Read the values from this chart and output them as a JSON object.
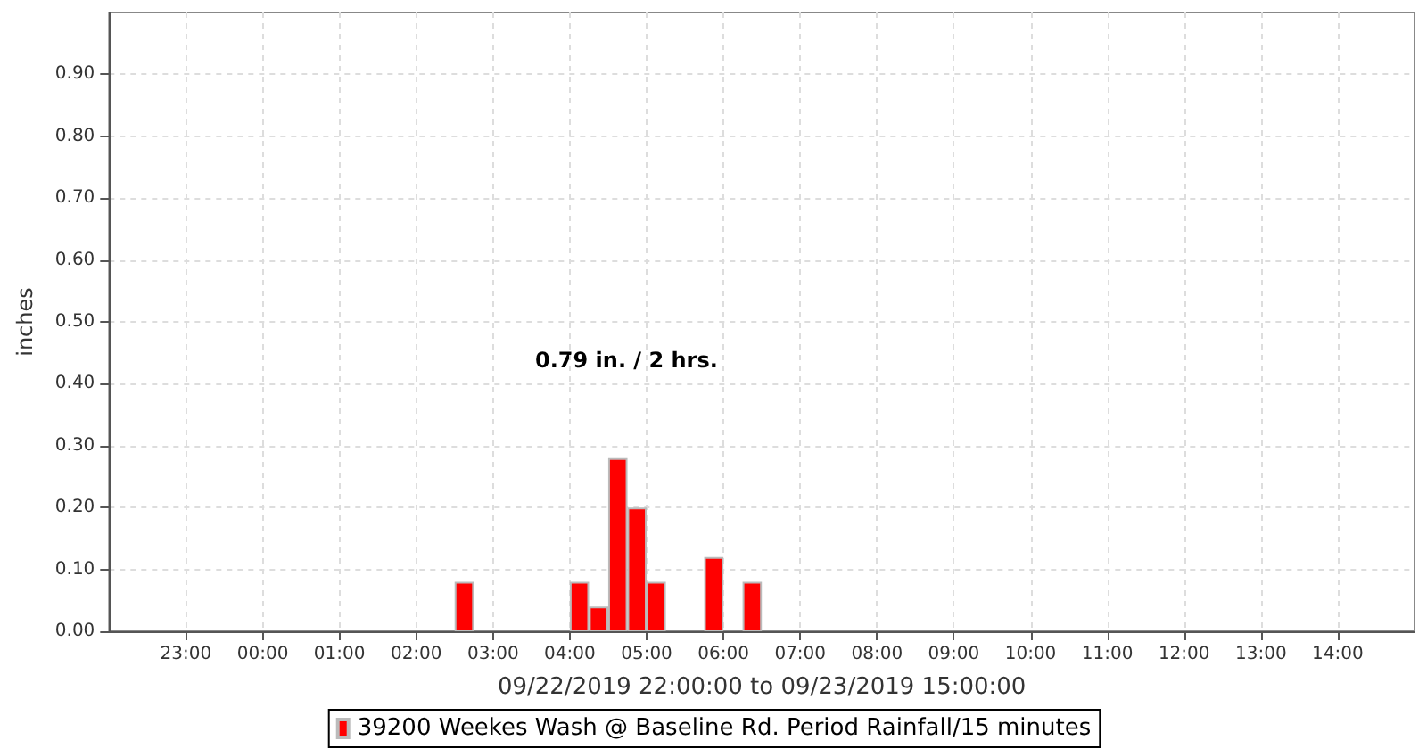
{
  "chart_data": {
    "type": "bar",
    "xlabel": "09/22/2019 22:00:00 to 09/23/2019 15:00:00",
    "ylabel": "inches",
    "annotations": [
      "0.79 in. / 2 hrs."
    ],
    "x": [
      "2019-09-23T02:37:30",
      "2019-09-23T04:07:30",
      "2019-09-23T04:22:30",
      "2019-09-23T04:37:30",
      "2019-09-23T04:52:30",
      "2019-09-23T05:07:30",
      "2019-09-23T05:52:30",
      "2019-09-23T06:22:30"
    ],
    "series": [
      {
        "name": "39200 Weekes Wash @ Baseline Rd. Period Rainfall/15 minutes",
        "color": "#ff0000",
        "values": [
          0.08,
          0.08,
          0.04,
          0.28,
          0.2,
          0.08,
          0.12,
          0.08
        ]
      }
    ],
    "xlim": [
      "2019-09-22T22:00",
      "2019-09-23T15:00"
    ],
    "xticks": [
      {
        "value": "2019-09-22T23:00",
        "label": "23:00"
      },
      {
        "value": "2019-09-23T00:00",
        "label": "00:00"
      },
      {
        "value": "2019-09-23T01:00",
        "label": "01:00"
      },
      {
        "value": "2019-09-23T02:00",
        "label": "02:00"
      },
      {
        "value": "2019-09-23T03:00",
        "label": "03:00"
      },
      {
        "value": "2019-09-23T04:00",
        "label": "04:00"
      },
      {
        "value": "2019-09-23T05:00",
        "label": "05:00"
      },
      {
        "value": "2019-09-23T06:00",
        "label": "06:00"
      },
      {
        "value": "2019-09-23T07:00",
        "label": "07:00"
      },
      {
        "value": "2019-09-23T08:00",
        "label": "08:00"
      },
      {
        "value": "2019-09-23T09:00",
        "label": "09:00"
      },
      {
        "value": "2019-09-23T10:00",
        "label": "10:00"
      },
      {
        "value": "2019-09-23T11:00",
        "label": "11:00"
      },
      {
        "value": "2019-09-23T12:00",
        "label": "12:00"
      },
      {
        "value": "2019-09-23T13:00",
        "label": "13:00"
      },
      {
        "value": "2019-09-23T14:00",
        "label": "14:00"
      }
    ],
    "ylim": [
      0,
      1.0
    ],
    "yticks": [
      {
        "value": 0,
        "label": "0.00"
      },
      {
        "value": 0.1,
        "label": "0.10"
      },
      {
        "value": 0.2,
        "label": "0.20"
      },
      {
        "value": 0.3,
        "label": "0.30"
      },
      {
        "value": 0.4,
        "label": "0.40"
      },
      {
        "value": 0.5,
        "label": "0.50"
      },
      {
        "value": 0.6,
        "label": "0.60"
      },
      {
        "value": 0.7,
        "label": "0.70"
      },
      {
        "value": 0.8,
        "label": "0.80"
      },
      {
        "value": 0.9,
        "label": "0.90"
      }
    ],
    "grid": true,
    "legend": "bottom"
  }
}
